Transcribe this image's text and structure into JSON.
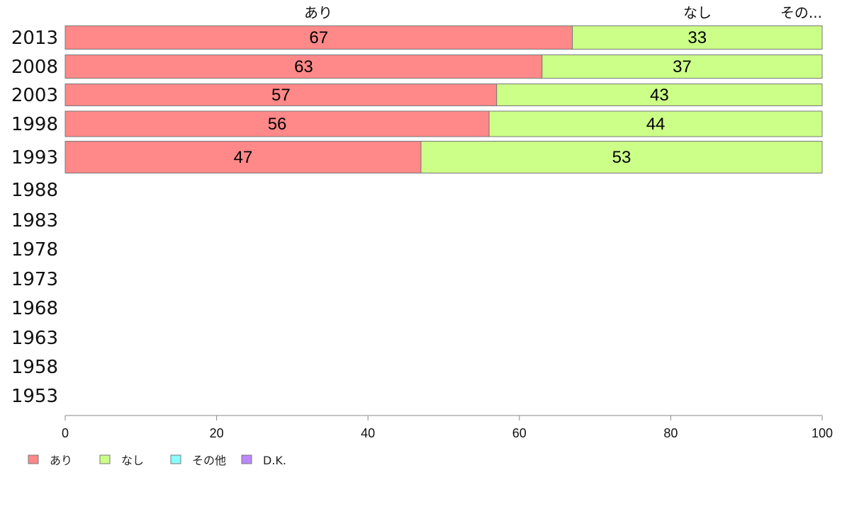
{
  "chart_data": {
    "type": "bar",
    "orientation": "horizontal",
    "stacked": true,
    "categories": [
      "2013",
      "2008",
      "2003",
      "1998",
      "1993",
      "1988",
      "1983",
      "1978",
      "1973",
      "1968",
      "1963",
      "1958",
      "1953"
    ],
    "series": [
      {
        "name": "あり",
        "color": "#FF8888",
        "values": [
          67,
          63,
          57,
          56,
          47,
          null,
          null,
          null,
          null,
          null,
          null,
          null,
          null
        ]
      },
      {
        "name": "なし",
        "color": "#CCFF88",
        "values": [
          33,
          37,
          43,
          44,
          53,
          null,
          null,
          null,
          null,
          null,
          null,
          null,
          null
        ]
      },
      {
        "name": "その他",
        "color": "#88FFFF",
        "values": [
          0,
          0,
          0,
          0,
          0,
          null,
          null,
          null,
          null,
          null,
          null,
          null,
          null
        ]
      },
      {
        "name": "D.K.",
        "color": "#BB88FF",
        "values": [
          0,
          0,
          0,
          0,
          0,
          null,
          null,
          null,
          null,
          null,
          null,
          null,
          null
        ]
      }
    ],
    "top_labels": [
      "あり",
      "なし",
      "その..."
    ],
    "xlim": [
      0,
      100
    ],
    "xticks": [
      0,
      20,
      40,
      60,
      80,
      100
    ],
    "grid": false,
    "legend_position": "bottom-left"
  }
}
